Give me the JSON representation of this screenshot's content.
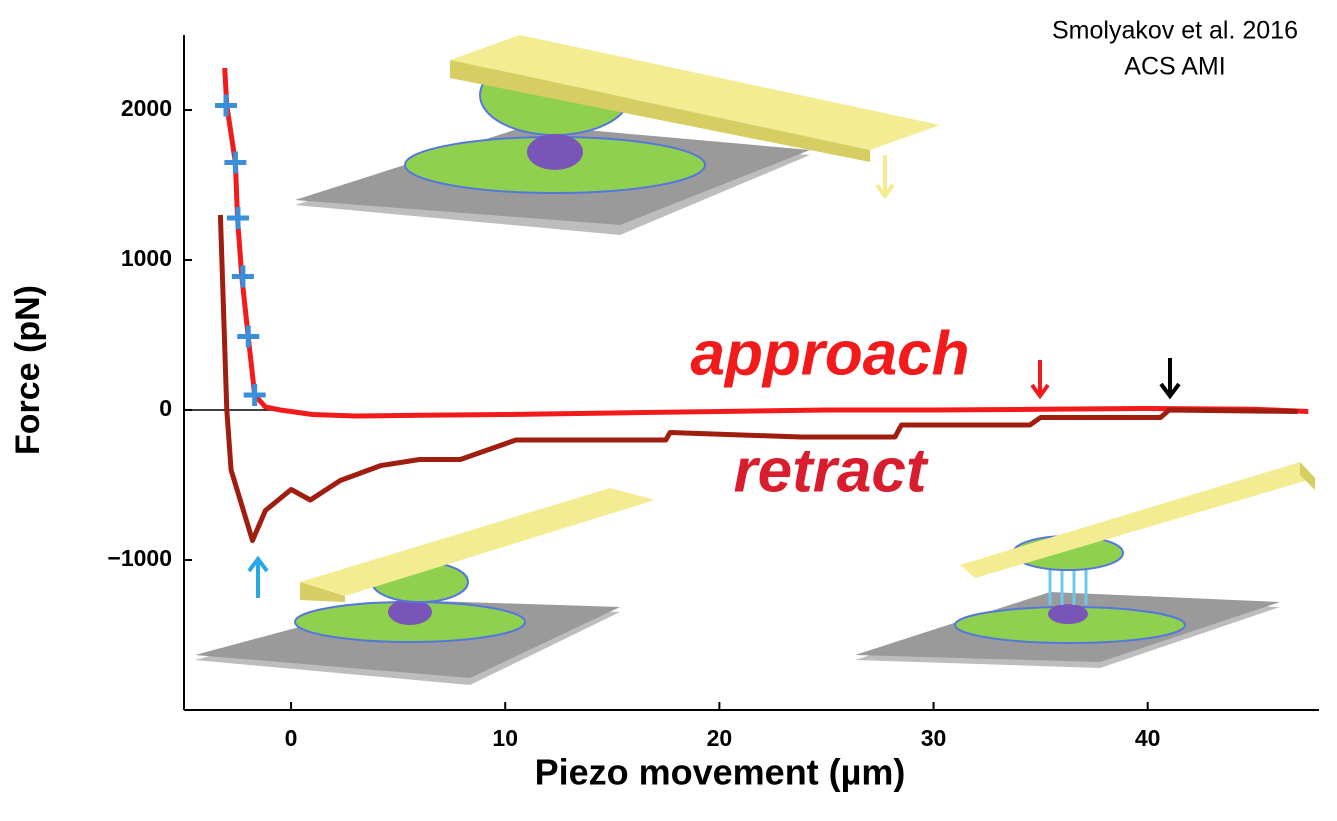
{
  "chart_data": {
    "type": "line",
    "citation": [
      "Smolyakov et al. 2016",
      "ACS AMI"
    ],
    "xlabel": "Piezo movement (µm)",
    "ylabel": "Force (pN)",
    "annotations": [
      "approach",
      "retract"
    ],
    "xlim": [
      -5,
      48
    ],
    "ylim": [
      -2000,
      2500
    ],
    "xticks": [
      0,
      10,
      20,
      30,
      40
    ],
    "yticks": [
      {
        "value": -1000,
        "label": "−1000"
      },
      0,
      1000,
      2000
    ],
    "grid": false,
    "series": [
      {
        "color": "#f21a1a",
        "line": true,
        "x": [
          -3.1,
          -3.0,
          -2.6,
          -2.5,
          -2.3,
          -2.0,
          -1.7,
          -1.2,
          -0.5,
          1,
          3,
          6,
          10,
          15,
          20,
          25,
          30,
          35,
          40,
          45,
          47.5
        ],
        "values": [
          2280,
          2030,
          1650,
          1280,
          890,
          490,
          100,
          20,
          0,
          -30,
          -40,
          -35,
          -30,
          -20,
          -10,
          0,
          0,
          5,
          10,
          5,
          -10
        ]
      },
      {
        "color": "#a01e10",
        "line": true,
        "x": [
          -3.3,
          -3.0,
          -2.8,
          -1.8,
          -1.2,
          0,
          0.9,
          2.3,
          4.2,
          6,
          7.9,
          10.5,
          14.4,
          17.5,
          17.7,
          23.8,
          28.2,
          28.5,
          34.5,
          35,
          40.6,
          41,
          47
        ],
        "values": [
          1300,
          0,
          -400,
          -870,
          -670,
          -530,
          -600,
          -470,
          -370,
          -330,
          -330,
          -200,
          -200,
          -200,
          -150,
          -180,
          -180,
          -100,
          -100,
          -50,
          -50,
          0,
          -10
        ]
      },
      {
        "color": "#3a8fd8",
        "line": false,
        "marker": "+",
        "x": [
          -3.04,
          -2.6,
          -2.48,
          -2.25,
          -2.0,
          -1.7
        ],
        "values": [
          2030,
          1650,
          1280,
          890,
          490,
          100
        ]
      }
    ]
  }
}
